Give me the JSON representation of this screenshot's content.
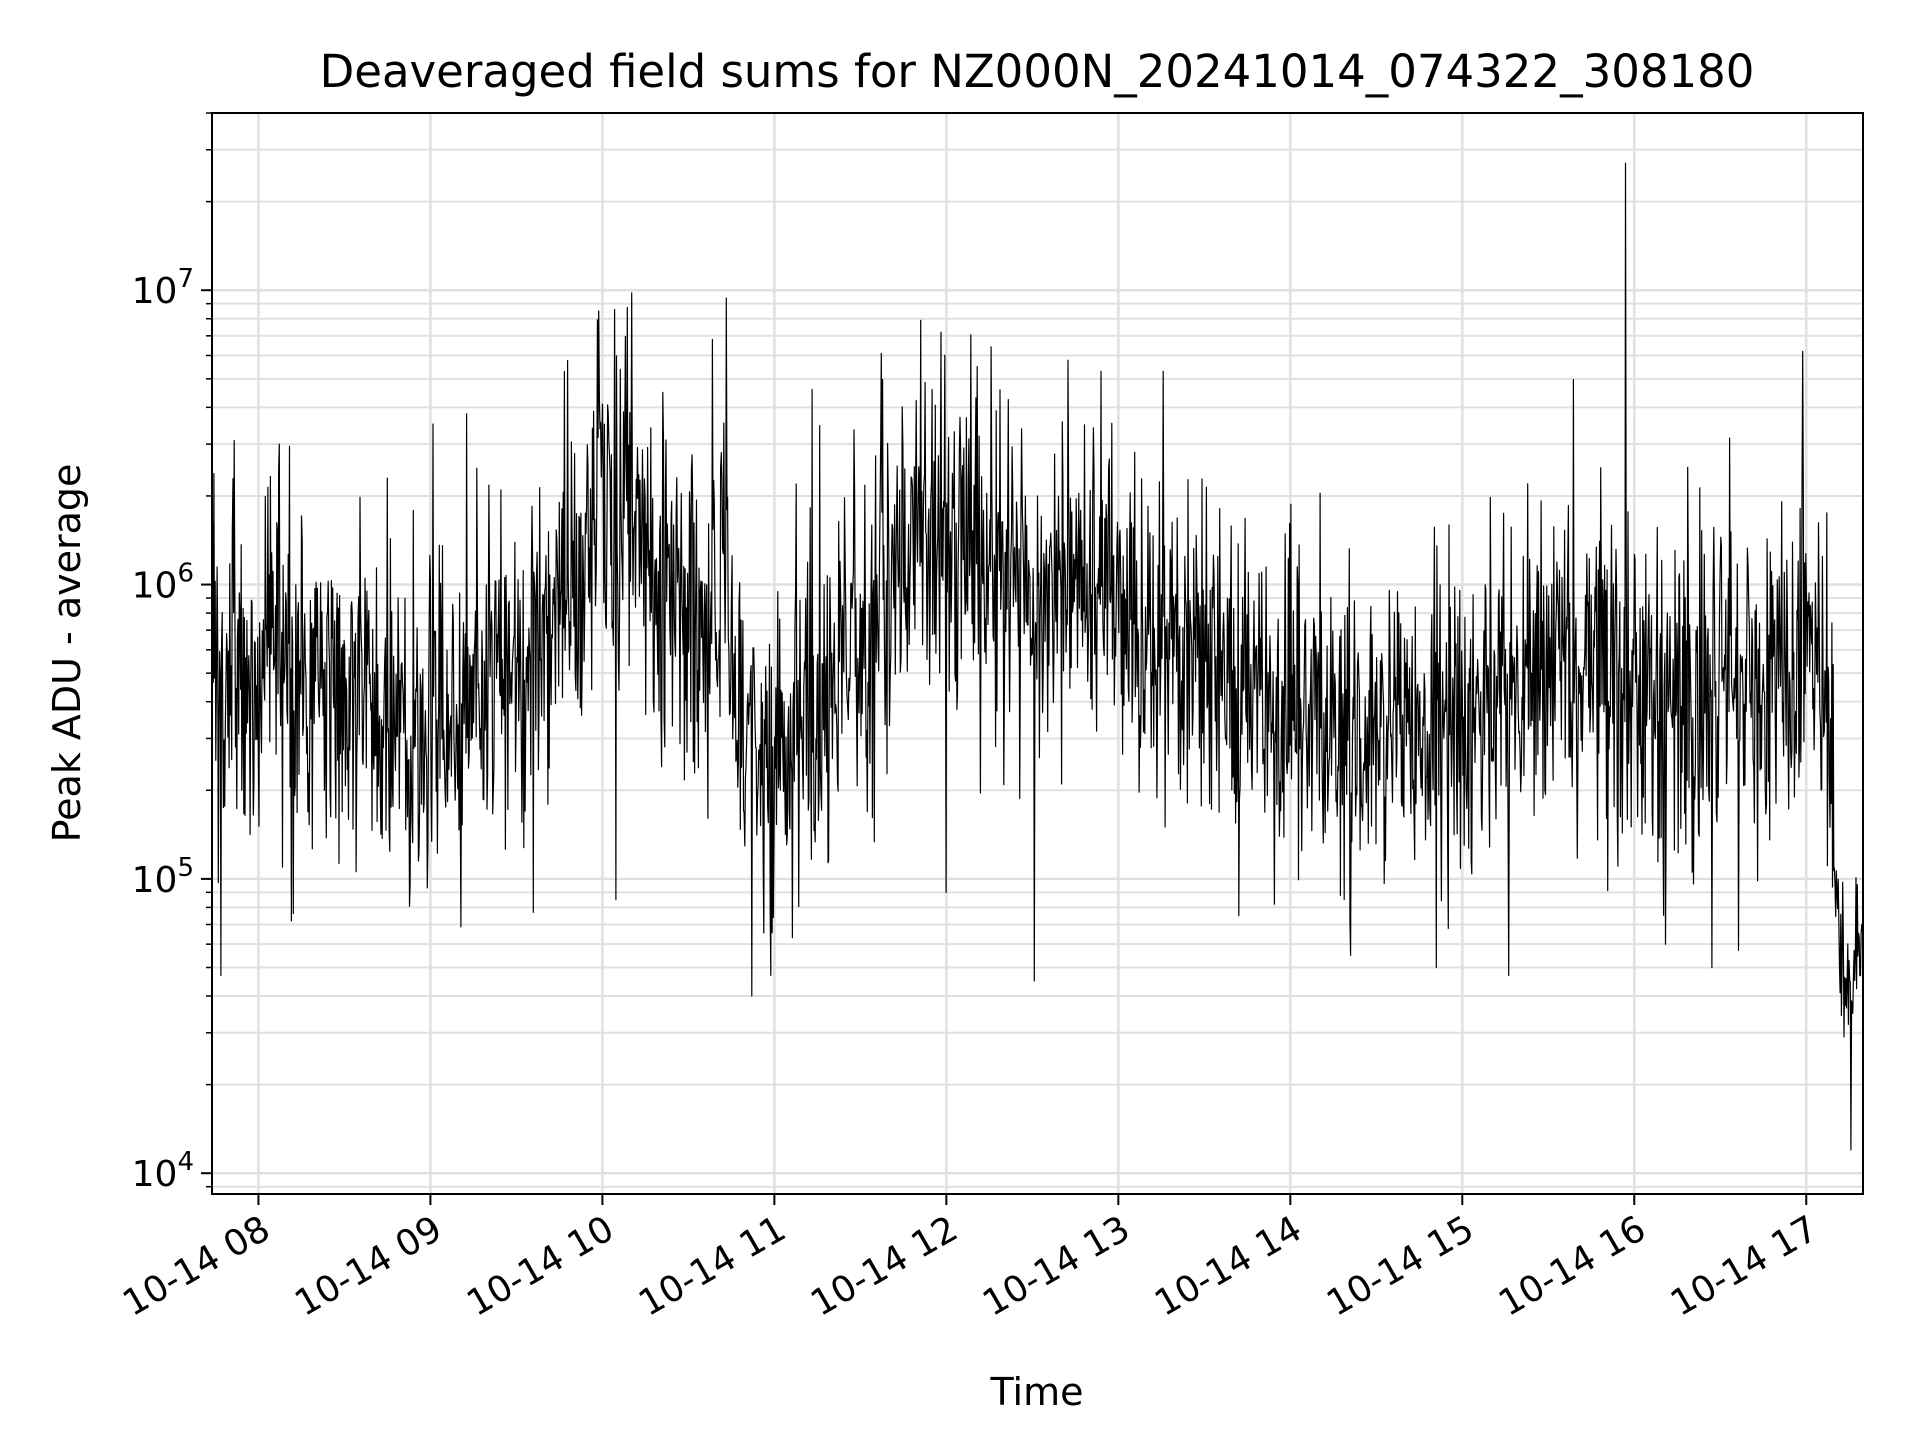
{
  "chart_data": {
    "type": "line",
    "title": "Deaveraged field sums for NZ000N_20241014_074322_308180",
    "xlabel": "Time",
    "ylabel": "Peak ADU - average",
    "yscale": "log",
    "ylim": [
      8500,
      40000000
    ],
    "xlim_hours": [
      7.73,
      17.33
    ],
    "x_ticks": [
      {
        "hour": 8,
        "label": "10-14 08"
      },
      {
        "hour": 9,
        "label": "10-14 09"
      },
      {
        "hour": 10,
        "label": "10-14 10"
      },
      {
        "hour": 11,
        "label": "10-14 11"
      },
      {
        "hour": 12,
        "label": "10-14 12"
      },
      {
        "hour": 13,
        "label": "10-14 13"
      },
      {
        "hour": 14,
        "label": "10-14 14"
      },
      {
        "hour": 15,
        "label": "10-14 15"
      },
      {
        "hour": 16,
        "label": "10-14 16"
      },
      {
        "hour": 17,
        "label": "10-14 17"
      }
    ],
    "y_ticks": [
      {
        "value": 10000,
        "base": "10",
        "exp": "4"
      },
      {
        "value": 100000,
        "base": "10",
        "exp": "5"
      },
      {
        "value": 1000000,
        "base": "10",
        "exp": "6"
      },
      {
        "value": 10000000,
        "base": "10",
        "exp": "7"
      }
    ],
    "grid": true,
    "line_color": "#000000",
    "grid_color": "#e0e0e0",
    "series": [
      {
        "trend": [
          [
            7.73,
            700000
          ],
          [
            7.8,
            450000
          ],
          [
            8.0,
            500000
          ],
          [
            8.1,
            650000
          ],
          [
            8.2,
            420000
          ],
          [
            8.5,
            420000
          ],
          [
            8.8,
            350000
          ],
          [
            9.0,
            360000
          ],
          [
            9.3,
            400000
          ],
          [
            9.5,
            500000
          ],
          [
            9.8,
            1000000
          ],
          [
            10.0,
            1900000
          ],
          [
            10.2,
            1600000
          ],
          [
            10.5,
            700000
          ],
          [
            10.7,
            900000
          ],
          [
            10.85,
            280000
          ],
          [
            11.0,
            220000
          ],
          [
            11.2,
            400000
          ],
          [
            11.4,
            500000
          ],
          [
            11.6,
            900000
          ],
          [
            11.8,
            1400000
          ],
          [
            12.0,
            1500000
          ],
          [
            12.3,
            1200000
          ],
          [
            12.5,
            700000
          ],
          [
            12.7,
            1100000
          ],
          [
            13.0,
            1000000
          ],
          [
            13.2,
            600000
          ],
          [
            13.5,
            500000
          ],
          [
            14.0,
            350000
          ],
          [
            14.5,
            280000
          ],
          [
            15.0,
            350000
          ],
          [
            15.5,
            500000
          ],
          [
            15.8,
            550000
          ],
          [
            16.0,
            400000
          ],
          [
            16.3,
            350000
          ],
          [
            16.5,
            450000
          ],
          [
            16.8,
            500000
          ],
          [
            17.0,
            600000
          ],
          [
            17.12,
            450000
          ],
          [
            17.16,
            200000
          ],
          [
            17.2,
            45000
          ],
          [
            17.26,
            38000
          ],
          [
            17.33,
            70000
          ]
        ],
        "sigma_log10": 0.28,
        "spikes": [
          [
            7.78,
            47000
          ],
          [
            8.12,
            3000000
          ],
          [
            8.18,
            2950000
          ],
          [
            8.19,
            72000
          ],
          [
            8.75,
            2300000
          ],
          [
            9.21,
            3800000
          ],
          [
            9.6,
            77000
          ],
          [
            9.98,
            8500000
          ],
          [
            10.07,
            8600000
          ],
          [
            10.17,
            9800000
          ],
          [
            10.08,
            85000
          ],
          [
            10.35,
            4500000
          ],
          [
            10.64,
            6800000
          ],
          [
            10.72,
            9400000
          ],
          [
            10.87,
            40000
          ],
          [
            10.98,
            47000
          ],
          [
            11.22,
            4600000
          ],
          [
            11.62,
            6100000
          ],
          [
            11.85,
            7900000
          ],
          [
            11.97,
            7200000
          ],
          [
            12.0,
            90000
          ],
          [
            12.18,
            5500000
          ],
          [
            12.51,
            45000
          ],
          [
            12.9,
            5300000
          ],
          [
            13.26,
            5300000
          ],
          [
            13.7,
            75000
          ],
          [
            14.35,
            55000
          ],
          [
            14.85,
            50000
          ],
          [
            15.27,
            47000
          ],
          [
            15.95,
            27000000
          ],
          [
            16.18,
            60000
          ],
          [
            16.31,
            2500000
          ],
          [
            16.45,
            50000
          ],
          [
            16.98,
            6200000
          ],
          [
            17.26,
            12000
          ]
        ],
        "values_note_omitted": true
      }
    ]
  }
}
